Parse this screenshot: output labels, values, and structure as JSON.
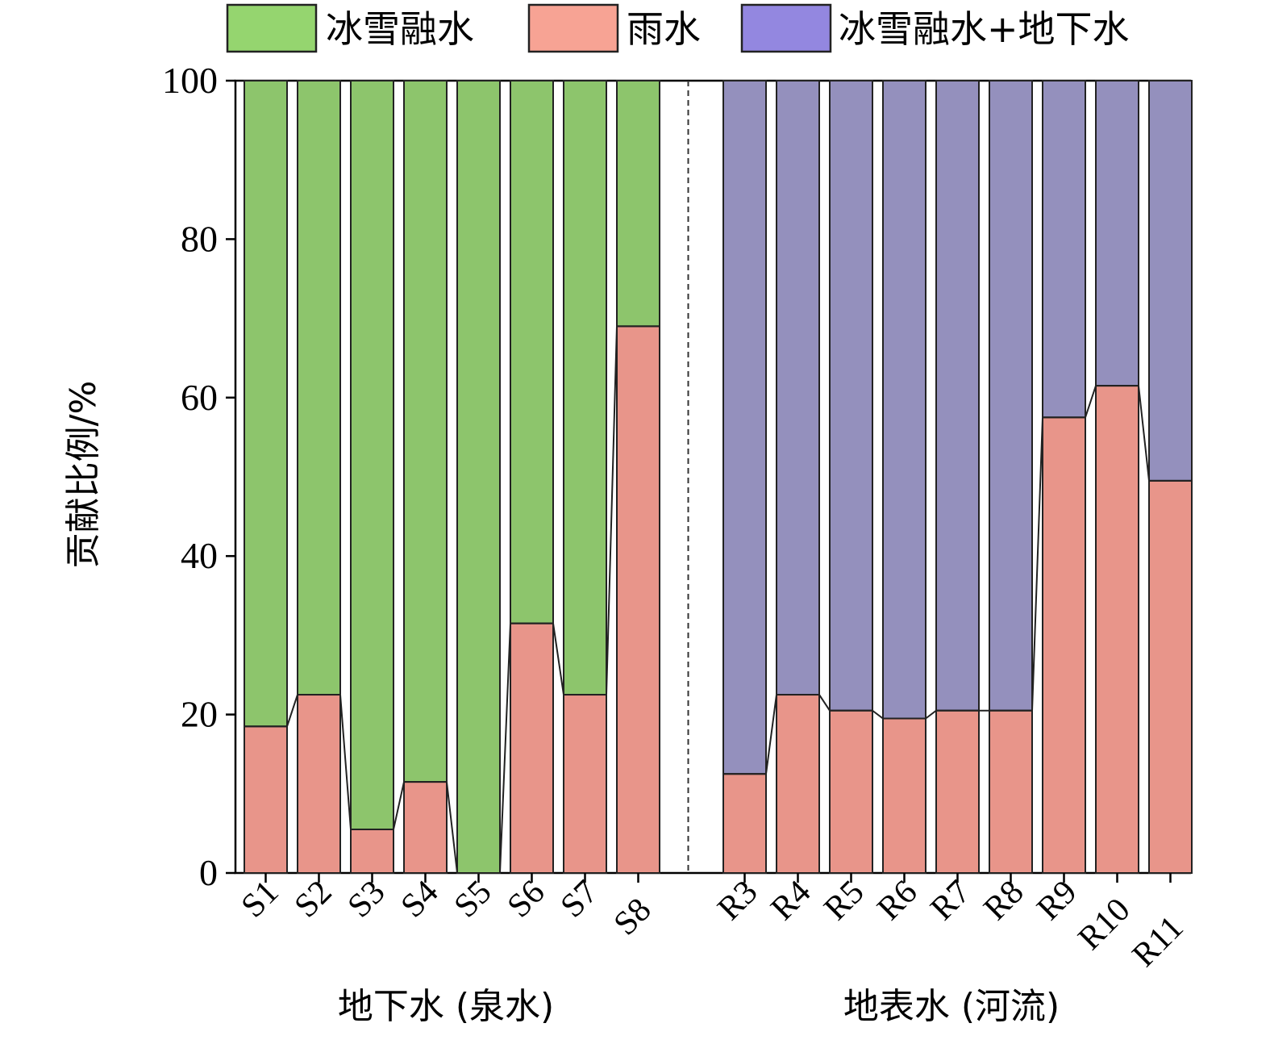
{
  "chart_data": {
    "type": "bar",
    "stacked": true,
    "ylabel": "贡献比例/%",
    "ylim": [
      0,
      100
    ],
    "yticks": [
      0,
      20,
      40,
      60,
      80,
      100
    ],
    "legend": {
      "placement": "top",
      "items": [
        {
          "name": "冰雪融水",
          "color": "#95d56f"
        },
        {
          "name": "雨水",
          "color": "#f7a394"
        },
        {
          "name": "冰雪融水+地下水",
          "color": "#9387e0"
        }
      ]
    },
    "groups": [
      {
        "label": "地下水 (泉水)",
        "categories": [
          "S1",
          "S2",
          "S3",
          "S4",
          "S5",
          "S6",
          "S7",
          "S8"
        ],
        "series": [
          {
            "name": "雨水",
            "color": "#e8958a",
            "values": [
              18.5,
              22.5,
              5.5,
              11.5,
              0,
              31.5,
              22.5,
              69
            ]
          },
          {
            "name": "冰雪融水",
            "color": "#8dc56c",
            "values": [
              81.5,
              77.5,
              94.5,
              88.5,
              100,
              68.5,
              77.5,
              31
            ]
          }
        ]
      },
      {
        "label": "地表水 (河流)",
        "categories": [
          "R3",
          "R4",
          "R5",
          "R6",
          "R7",
          "R8",
          "R9",
          "R10",
          "R11"
        ],
        "series": [
          {
            "name": "雨水",
            "color": "#e8958a",
            "values": [
              12.5,
              22.5,
              20.5,
              19.5,
              20.5,
              20.5,
              57.5,
              61.5,
              49.5
            ]
          },
          {
            "name": "冰雪融水+地下水",
            "color": "#9490bd",
            "values": [
              87.5,
              77.5,
              79.5,
              80.5,
              79.5,
              79.5,
              42.5,
              38.5,
              50.5
            ]
          }
        ]
      }
    ]
  }
}
